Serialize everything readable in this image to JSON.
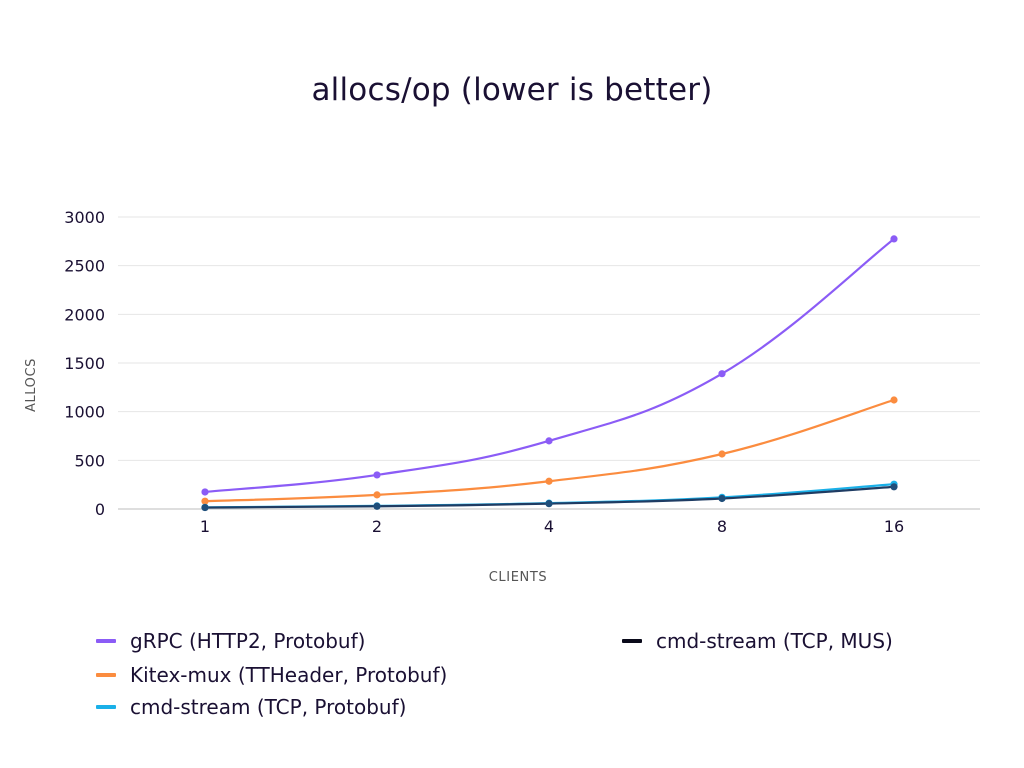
{
  "chart_data": {
    "type": "line",
    "title": "allocs/op (lower is better)",
    "xlabel": "CLIENTS",
    "ylabel": "ALLOCS",
    "categories": [
      "1",
      "2",
      "4",
      "8",
      "16"
    ],
    "ylim": [
      0,
      3000
    ],
    "yticks": [
      0,
      500,
      1000,
      1500,
      2000,
      2500,
      3000
    ],
    "grid": true,
    "legend_position": "bottom",
    "series": [
      {
        "name": "gRPC (HTTP2, Protobuf)",
        "color": "#8b5cf6",
        "values": [
          175,
          350,
          700,
          1390,
          2775
        ]
      },
      {
        "name": "Kitex-mux (TTHeader, Protobuf)",
        "color": "#fb8c3f",
        "values": [
          80,
          145,
          285,
          565,
          1120
        ]
      },
      {
        "name": "cmd-stream (TCP, Protobuf)",
        "color": "#1ab0e8",
        "values": [
          17,
          32,
          60,
          120,
          255
        ]
      },
      {
        "name": "cmd-stream (TCP, MUS)",
        "color": "#0a0a1a",
        "marker_color": "#1f4e7a",
        "values": [
          15,
          28,
          55,
          108,
          228
        ]
      }
    ]
  }
}
